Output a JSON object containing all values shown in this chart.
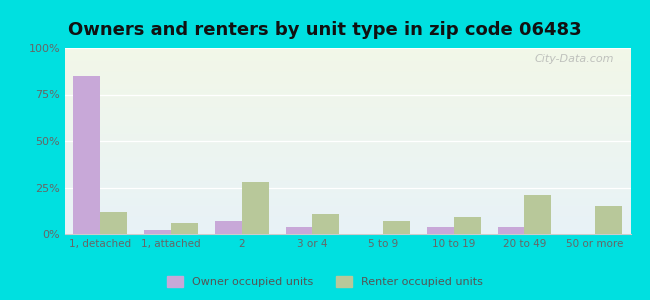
{
  "title": "Owners and renters by unit type in zip code 06483",
  "categories": [
    "1, detached",
    "1, attached",
    "2",
    "3 or 4",
    "5 to 9",
    "10 to 19",
    "20 to 49",
    "50 or more"
  ],
  "owner_values": [
    85,
    2,
    7,
    4,
    0,
    4,
    4,
    0
  ],
  "renter_values": [
    12,
    6,
    28,
    11,
    7,
    9,
    21,
    15
  ],
  "owner_color": "#c8a8d8",
  "renter_color": "#b8c89a",
  "background_color": "#00e0e0",
  "title_fontsize": 13,
  "legend_owner": "Owner occupied units",
  "legend_renter": "Renter occupied units",
  "ylim": [
    0,
    100
  ],
  "yticks": [
    0,
    25,
    50,
    75,
    100
  ],
  "ytick_labels": [
    "0%",
    "25%",
    "50%",
    "75%",
    "100%"
  ],
  "watermark": "City-Data.com"
}
